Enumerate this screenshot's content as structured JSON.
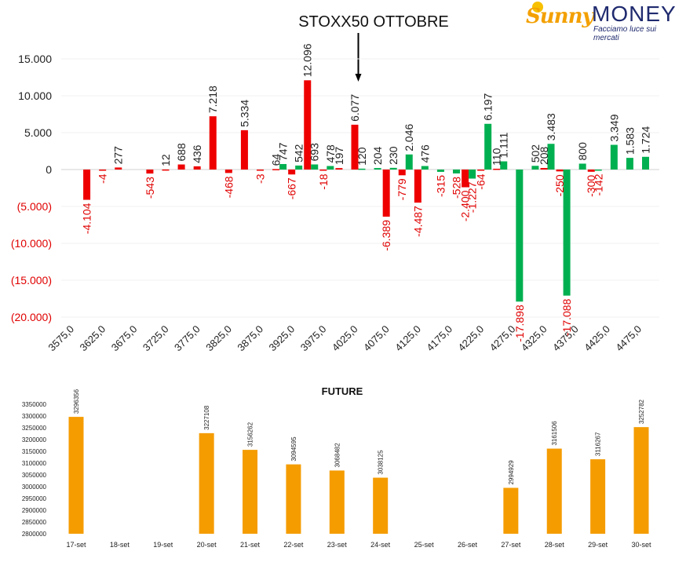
{
  "logo": {
    "brand_a": "Sunny",
    "brand_b": "MONEY",
    "tagline": "Facciamo luce sui mercati"
  },
  "colors": {
    "positive": "#00b050",
    "negative": "#ee0000",
    "future_bar": "#f59c00",
    "neg_label": "#e00000"
  },
  "chart_data": [
    {
      "type": "bar",
      "title": "STOXX50 OTTOBRE",
      "annotation_arrow_at": "4025,0",
      "y_ticks": [
        "15.000",
        "10.000",
        "5.000",
        "0",
        "(5.000)",
        "(10.000)",
        "(15.000)",
        "(20.000)"
      ],
      "y_tick_values": [
        15000,
        10000,
        5000,
        0,
        -5000,
        -10000,
        -15000,
        -20000
      ],
      "ylim": [
        -20000,
        15000
      ],
      "x_ticks": [
        "3575,0",
        "3625,0",
        "3675,0",
        "3725,0",
        "3775,0",
        "3825,0",
        "3875,0",
        "3925,0",
        "3975,0",
        "4025,0",
        "4075,0",
        "4125,0",
        "4175,0",
        "4225,0",
        "4275,0",
        "4325,0",
        "4375,0",
        "4425,0",
        "4475,0"
      ],
      "x_tick_values": [
        3575,
        3625,
        3675,
        3725,
        3775,
        3825,
        3875,
        3925,
        3975,
        4025,
        4075,
        4125,
        4175,
        4225,
        4275,
        4325,
        4375,
        4425,
        4475
      ],
      "series": [
        {
          "color": "negative",
          "strikes": [
            3600,
            3625,
            3650,
            3700,
            3725,
            3750,
            3775,
            3800,
            3825,
            3850,
            3875,
            3900,
            3925,
            3950,
            3975,
            4000,
            4025,
            4075,
            4100,
            4125,
            4200,
            4225,
            4250,
            4325,
            4350,
            4400
          ],
          "values": [
            -4104,
            -4,
            277,
            -543,
            12,
            688,
            436,
            7218,
            -468,
            5334,
            -3,
            64,
            -667,
            12096,
            -18,
            197,
            6077,
            -6389,
            -779,
            -4487,
            -2400,
            -64,
            110,
            208,
            -250,
            -300
          ],
          "labels": [
            "-4.104",
            "-4",
            "277",
            "-543",
            "12",
            "688",
            "436",
            "7.218",
            "-468",
            "5.334",
            "-3",
            "64",
            "-667",
            "12.096",
            "-18",
            "197",
            "6.077",
            "-6.389",
            "-779",
            "-4.487",
            "-2.400",
            "-64",
            "110",
            "208",
            "-250",
            "-300"
          ]
        },
        {
          "color": "positive",
          "strikes": [
            3900,
            3925,
            3950,
            3975,
            4025,
            4050,
            4075,
            4100,
            4125,
            4150,
            4175,
            4200,
            4225,
            4250,
            4275,
            4300,
            4325,
            4350,
            4375,
            4400,
            4425,
            4450,
            4475
          ],
          "values": [
            747,
            542,
            693,
            478,
            120,
            204,
            230,
            2046,
            476,
            -315,
            -528,
            -1227,
            6197,
            1111,
            -17898,
            502,
            3483,
            -17088,
            800,
            -142,
            3349,
            1583,
            1724
          ],
          "labels": [
            "747",
            "542",
            "693",
            "478",
            "120",
            "204",
            "230",
            "2.046",
            "476",
            "-315",
            "-528",
            "-1.227",
            "6.197",
            "1.111",
            "-17.898",
            "502",
            "3.483",
            "-17.088",
            "800",
            "-142",
            "3.349",
            "1.583",
            "1.724"
          ]
        }
      ]
    },
    {
      "type": "bar",
      "title": "FUTURE",
      "categories": [
        "17-set",
        "18-set",
        "19-set",
        "20-set",
        "21-set",
        "22-set",
        "23-set",
        "24-set",
        "25-set",
        "26-set",
        "27-set",
        "28-set",
        "29-set",
        "30-set"
      ],
      "values": [
        3296356,
        null,
        null,
        3227108,
        3156262,
        3094595,
        3068482,
        3038125,
        null,
        null,
        2994929,
        3161506,
        3116267,
        3252782
      ],
      "y_ticks": [
        "3350000",
        "3300000",
        "3250000",
        "3200000",
        "3150000",
        "3100000",
        "3050000",
        "3000000",
        "2950000",
        "2900000",
        "2850000",
        "2800000"
      ],
      "ylim": [
        2800000,
        3350000
      ]
    }
  ]
}
